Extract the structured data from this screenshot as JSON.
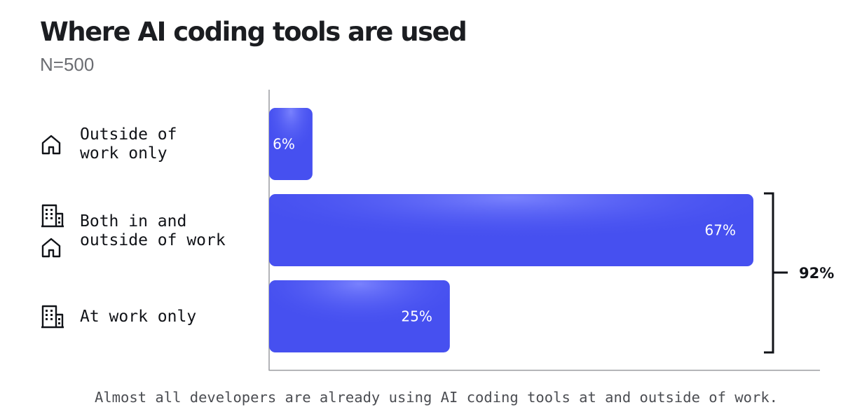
{
  "title": "Where AI coding tools are used",
  "subtitle": "N=500",
  "caption": "Almost all developers are already using AI coding tools at and outside of work.",
  "colors": {
    "bar": "#4650f0",
    "bar_highlight": "#6f78ff",
    "axis": "#9a9ca0",
    "text": "#111318"
  },
  "chart_data": {
    "type": "bar",
    "orientation": "horizontal",
    "categories": [
      "Outside of\nwork only",
      "Both in and\noutside of work",
      "At work only"
    ],
    "category_icons": [
      [
        "house-icon"
      ],
      [
        "building-icon",
        "house-icon"
      ],
      [
        "building-icon"
      ]
    ],
    "values": [
      6,
      67,
      25
    ],
    "value_labels": [
      "6%",
      "67%",
      "25%"
    ],
    "unit": "%",
    "xlim": [
      0,
      67
    ],
    "annotation": {
      "label": "92%",
      "spans_categories": [
        "Both in and\noutside of work",
        "At work only"
      ]
    },
    "grid": false,
    "legend": "none"
  }
}
